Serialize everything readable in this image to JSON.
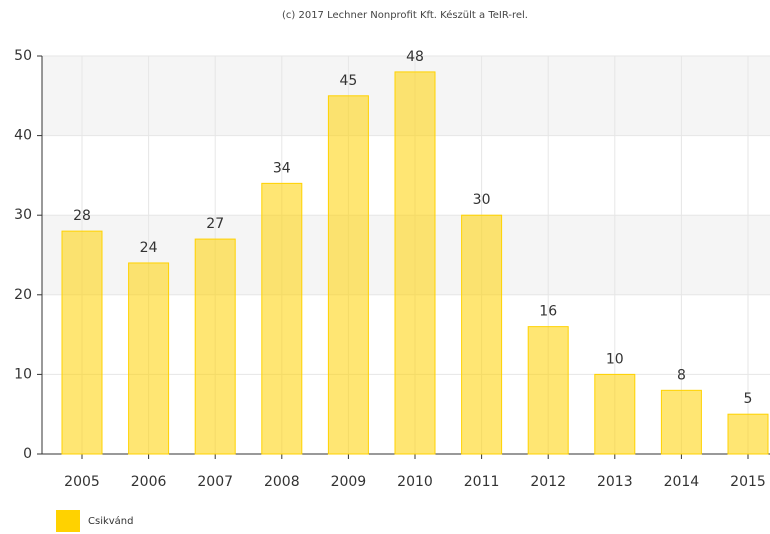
{
  "chart_data": {
    "type": "bar",
    "subtitle": "(c) 2017 Lechner Nonprofit Kft. Készült a TeIR-rel.",
    "categories": [
      "2005",
      "2006",
      "2007",
      "2008",
      "2009",
      "2010",
      "2011",
      "2012",
      "2013",
      "2014",
      "2015"
    ],
    "series": [
      {
        "name": "Csikvánd",
        "color": "#ffd200",
        "values": [
          28,
          24,
          27,
          34,
          45,
          48,
          30,
          16,
          10,
          8,
          5
        ]
      }
    ],
    "ylim": [
      0,
      50
    ],
    "yticks": [
      0,
      10,
      20,
      30,
      40,
      50
    ],
    "grid": true,
    "legend": "bottom-left"
  }
}
